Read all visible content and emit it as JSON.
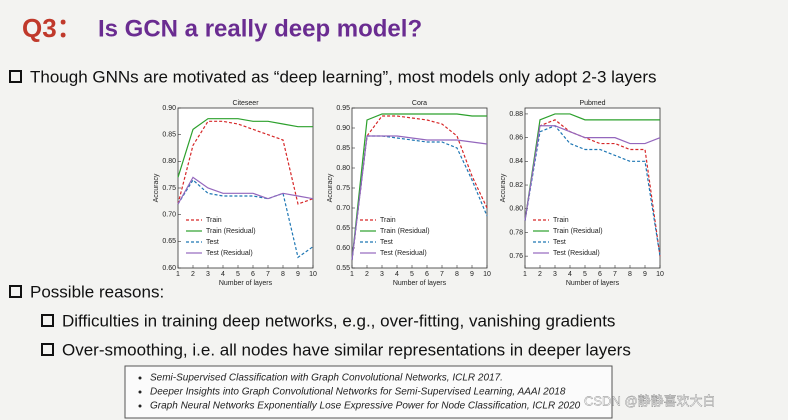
{
  "slide": {
    "title_prefix": "Q3：",
    "title": "Is GCN a really deep model?",
    "bullet1": "Though GNNs are motivated as “deep learning”, most models only adopt 2-3 layers",
    "bullet2": "Possible reasons:",
    "sub1": "Difficulties in training deep networks, e.g., over-fitting, vanishing gradients",
    "sub2": "Over-smoothing, i.e. all nodes have similar representations in deeper layers",
    "refs": [
      "Semi-Supervised Classification with Graph Convolutional Networks, ICLR 2017.",
      "Deeper Insights into Graph Convolutional Networks for Semi-Supervised Learning, AAAI 2018",
      "Graph Neural Networks Exponentially Lose Expressive Power for Node Classification, ICLR 2020"
    ],
    "watermark": "CSDN @静静喜欢大白"
  },
  "chart_data": [
    {
      "type": "line",
      "title": "Citeseer",
      "x_label": "Number of layers",
      "y_label": "Accuracy",
      "x": [
        1,
        2,
        3,
        4,
        5,
        6,
        7,
        8,
        9,
        10
      ],
      "xlim": [
        1,
        10
      ],
      "xticks": [
        1,
        2,
        3,
        4,
        5,
        6,
        7,
        8,
        9,
        10
      ],
      "ylim": [
        0.6,
        0.9
      ],
      "yticks": [
        {
          "value": 0.6,
          "label": "0.60"
        },
        0.65,
        {
          "value": 0.7,
          "label": "0.70"
        },
        0.75,
        {
          "value": 0.8,
          "label": "0.80"
        },
        0.85,
        {
          "value": 0.9,
          "label": "0.90"
        }
      ],
      "series": [
        {
          "name": "Train",
          "color": "#d62728",
          "style": "dashed",
          "values": [
            0.72,
            0.83,
            0.875,
            0.875,
            0.87,
            0.86,
            0.85,
            0.84,
            0.72,
            0.73
          ]
        },
        {
          "name": "Train (Residual)",
          "color": "#2ca02c",
          "style": "solid",
          "values": [
            0.77,
            0.86,
            0.88,
            0.88,
            0.88,
            0.875,
            0.875,
            0.87,
            0.865,
            0.865
          ]
        },
        {
          "name": "Test",
          "color": "#1f77b4",
          "style": "dashed",
          "values": [
            0.72,
            0.765,
            0.74,
            0.735,
            0.735,
            0.735,
            0.73,
            0.74,
            0.62,
            0.64
          ]
        },
        {
          "name": "Test (Residual)",
          "color": "#9467bd",
          "style": "solid",
          "values": [
            0.72,
            0.77,
            0.75,
            0.74,
            0.74,
            0.74,
            0.73,
            0.74,
            0.735,
            0.73
          ]
        }
      ]
    },
    {
      "type": "line",
      "title": "Cora",
      "x_label": "Number of layers",
      "y_label": "Accuracy",
      "x": [
        1,
        2,
        3,
        4,
        5,
        6,
        7,
        8,
        9,
        10
      ],
      "xlim": [
        1,
        10
      ],
      "xticks": [
        1,
        2,
        3,
        4,
        5,
        6,
        7,
        8,
        9,
        10
      ],
      "ylim": [
        0.55,
        0.95
      ],
      "yticks": [
        0.55,
        {
          "value": 0.6,
          "label": "0.60"
        },
        0.65,
        {
          "value": 0.7,
          "label": "0.70"
        },
        0.75,
        {
          "value": 0.8,
          "label": "0.80"
        },
        0.85,
        {
          "value": 0.9,
          "label": "0.90"
        },
        0.95
      ],
      "series": [
        {
          "name": "Train",
          "color": "#d62728",
          "style": "dashed",
          "values": [
            0.57,
            0.88,
            0.93,
            0.93,
            0.925,
            0.92,
            0.91,
            0.88,
            0.78,
            0.7
          ]
        },
        {
          "name": "Train (Residual)",
          "color": "#2ca02c",
          "style": "solid",
          "values": [
            0.57,
            0.92,
            0.935,
            0.935,
            0.935,
            0.935,
            0.935,
            0.935,
            0.93,
            0.93
          ]
        },
        {
          "name": "Test",
          "color": "#1f77b4",
          "style": "dashed",
          "values": [
            0.57,
            0.88,
            0.88,
            0.875,
            0.87,
            0.865,
            0.865,
            0.85,
            0.77,
            0.68
          ]
        },
        {
          "name": "Test (Residual)",
          "color": "#9467bd",
          "style": "solid",
          "values": [
            0.57,
            0.88,
            0.88,
            0.88,
            0.875,
            0.87,
            0.87,
            0.87,
            0.865,
            0.86
          ]
        }
      ]
    },
    {
      "type": "line",
      "title": "Pubmed",
      "x_label": "Number of layers",
      "y_label": "Accuracy",
      "x": [
        1,
        2,
        3,
        4,
        5,
        6,
        7,
        8,
        9,
        10
      ],
      "xlim": [
        1,
        10
      ],
      "xticks": [
        1,
        2,
        3,
        4,
        5,
        6,
        7,
        8,
        9,
        10
      ],
      "ylim": [
        0.75,
        0.885
      ],
      "yticks": [
        0.76,
        0.78,
        {
          "value": 0.8,
          "label": "0.80"
        },
        0.82,
        0.84,
        0.86,
        0.88
      ],
      "series": [
        {
          "name": "Train",
          "color": "#d62728",
          "style": "dashed",
          "values": [
            0.79,
            0.87,
            0.875,
            0.865,
            0.86,
            0.855,
            0.855,
            0.85,
            0.85,
            0.76
          ]
        },
        {
          "name": "Train (Residual)",
          "color": "#2ca02c",
          "style": "solid",
          "values": [
            0.79,
            0.875,
            0.88,
            0.88,
            0.875,
            0.875,
            0.875,
            0.875,
            0.875,
            0.875
          ]
        },
        {
          "name": "Test",
          "color": "#1f77b4",
          "style": "dashed",
          "values": [
            0.79,
            0.865,
            0.87,
            0.855,
            0.85,
            0.85,
            0.845,
            0.84,
            0.84,
            0.76
          ]
        },
        {
          "name": "Test (Residual)",
          "color": "#9467bd",
          "style": "solid",
          "values": [
            0.79,
            0.87,
            0.87,
            0.865,
            0.86,
            0.86,
            0.86,
            0.855,
            0.855,
            0.86
          ]
        }
      ]
    }
  ]
}
